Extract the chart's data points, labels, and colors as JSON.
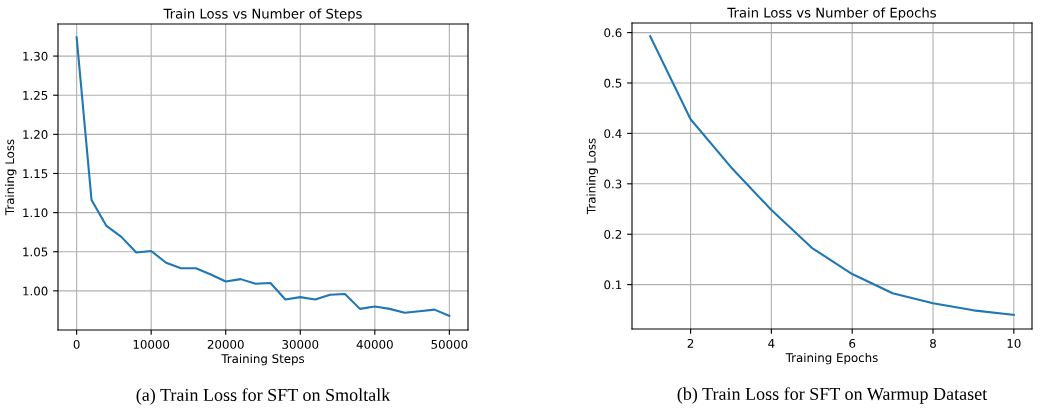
{
  "chart_data": [
    {
      "type": "line",
      "title": "Train Loss vs Number of Steps",
      "xlabel": "Training Steps",
      "ylabel": "Training Loss",
      "x": [
        0,
        2000,
        4000,
        6000,
        8000,
        10000,
        12000,
        14000,
        16000,
        18000,
        20000,
        22000,
        24000,
        26000,
        28000,
        30000,
        32000,
        34000,
        36000,
        38000,
        40000,
        42000,
        44000,
        46000,
        48000,
        50000
      ],
      "series": [
        {
          "color": "#1f77b4",
          "values": [
            1.324,
            1.116,
            1.083,
            1.069,
            1.049,
            1.051,
            1.036,
            1.029,
            1.029,
            1.021,
            1.012,
            1.015,
            1.009,
            1.01,
            0.989,
            0.992,
            0.989,
            0.995,
            0.996,
            0.977,
            0.98,
            0.977,
            0.972,
            0.974,
            0.976,
            0.968
          ]
        }
      ],
      "xlim": [
        -2500,
        52500
      ],
      "ylim": [
        0.95,
        1.341
      ],
      "xticks": [
        0,
        10000,
        20000,
        30000,
        40000,
        50000
      ],
      "yticks": [
        {
          "value": 1.0,
          "label": "1.00"
        },
        {
          "value": 1.05,
          "label": "1.05"
        },
        {
          "value": 1.1,
          "label": "1.10"
        },
        {
          "value": 1.15,
          "label": "1.15"
        },
        {
          "value": 1.2,
          "label": "1.20"
        },
        {
          "value": 1.25,
          "label": "1.25"
        },
        {
          "value": 1.3,
          "label": "1.30"
        }
      ],
      "grid": true,
      "annotations": [
        "(a) Train Loss for SFT on Smoltalk"
      ]
    },
    {
      "type": "line",
      "title": "Train Loss vs Number of Epochs",
      "xlabel": "Training Epochs",
      "ylabel": "Training Loss",
      "x": [
        1,
        2,
        3,
        4,
        5,
        6,
        7,
        8,
        9,
        10
      ],
      "series": [
        {
          "color": "#1f77b4",
          "values": [
            0.593,
            0.428,
            0.333,
            0.248,
            0.173,
            0.121,
            0.083,
            0.063,
            0.049,
            0.04
          ]
        }
      ],
      "xlim": [
        0.55,
        10.45
      ],
      "ylim": [
        0.012,
        0.619
      ],
      "xticks": [
        2,
        4,
        6,
        8,
        10
      ],
      "yticks": [
        0.1,
        0.2,
        0.3,
        0.4,
        0.5,
        0.6
      ],
      "grid": true,
      "annotations": [
        "(b) Train Loss for SFT on Warmup Dataset"
      ]
    }
  ]
}
